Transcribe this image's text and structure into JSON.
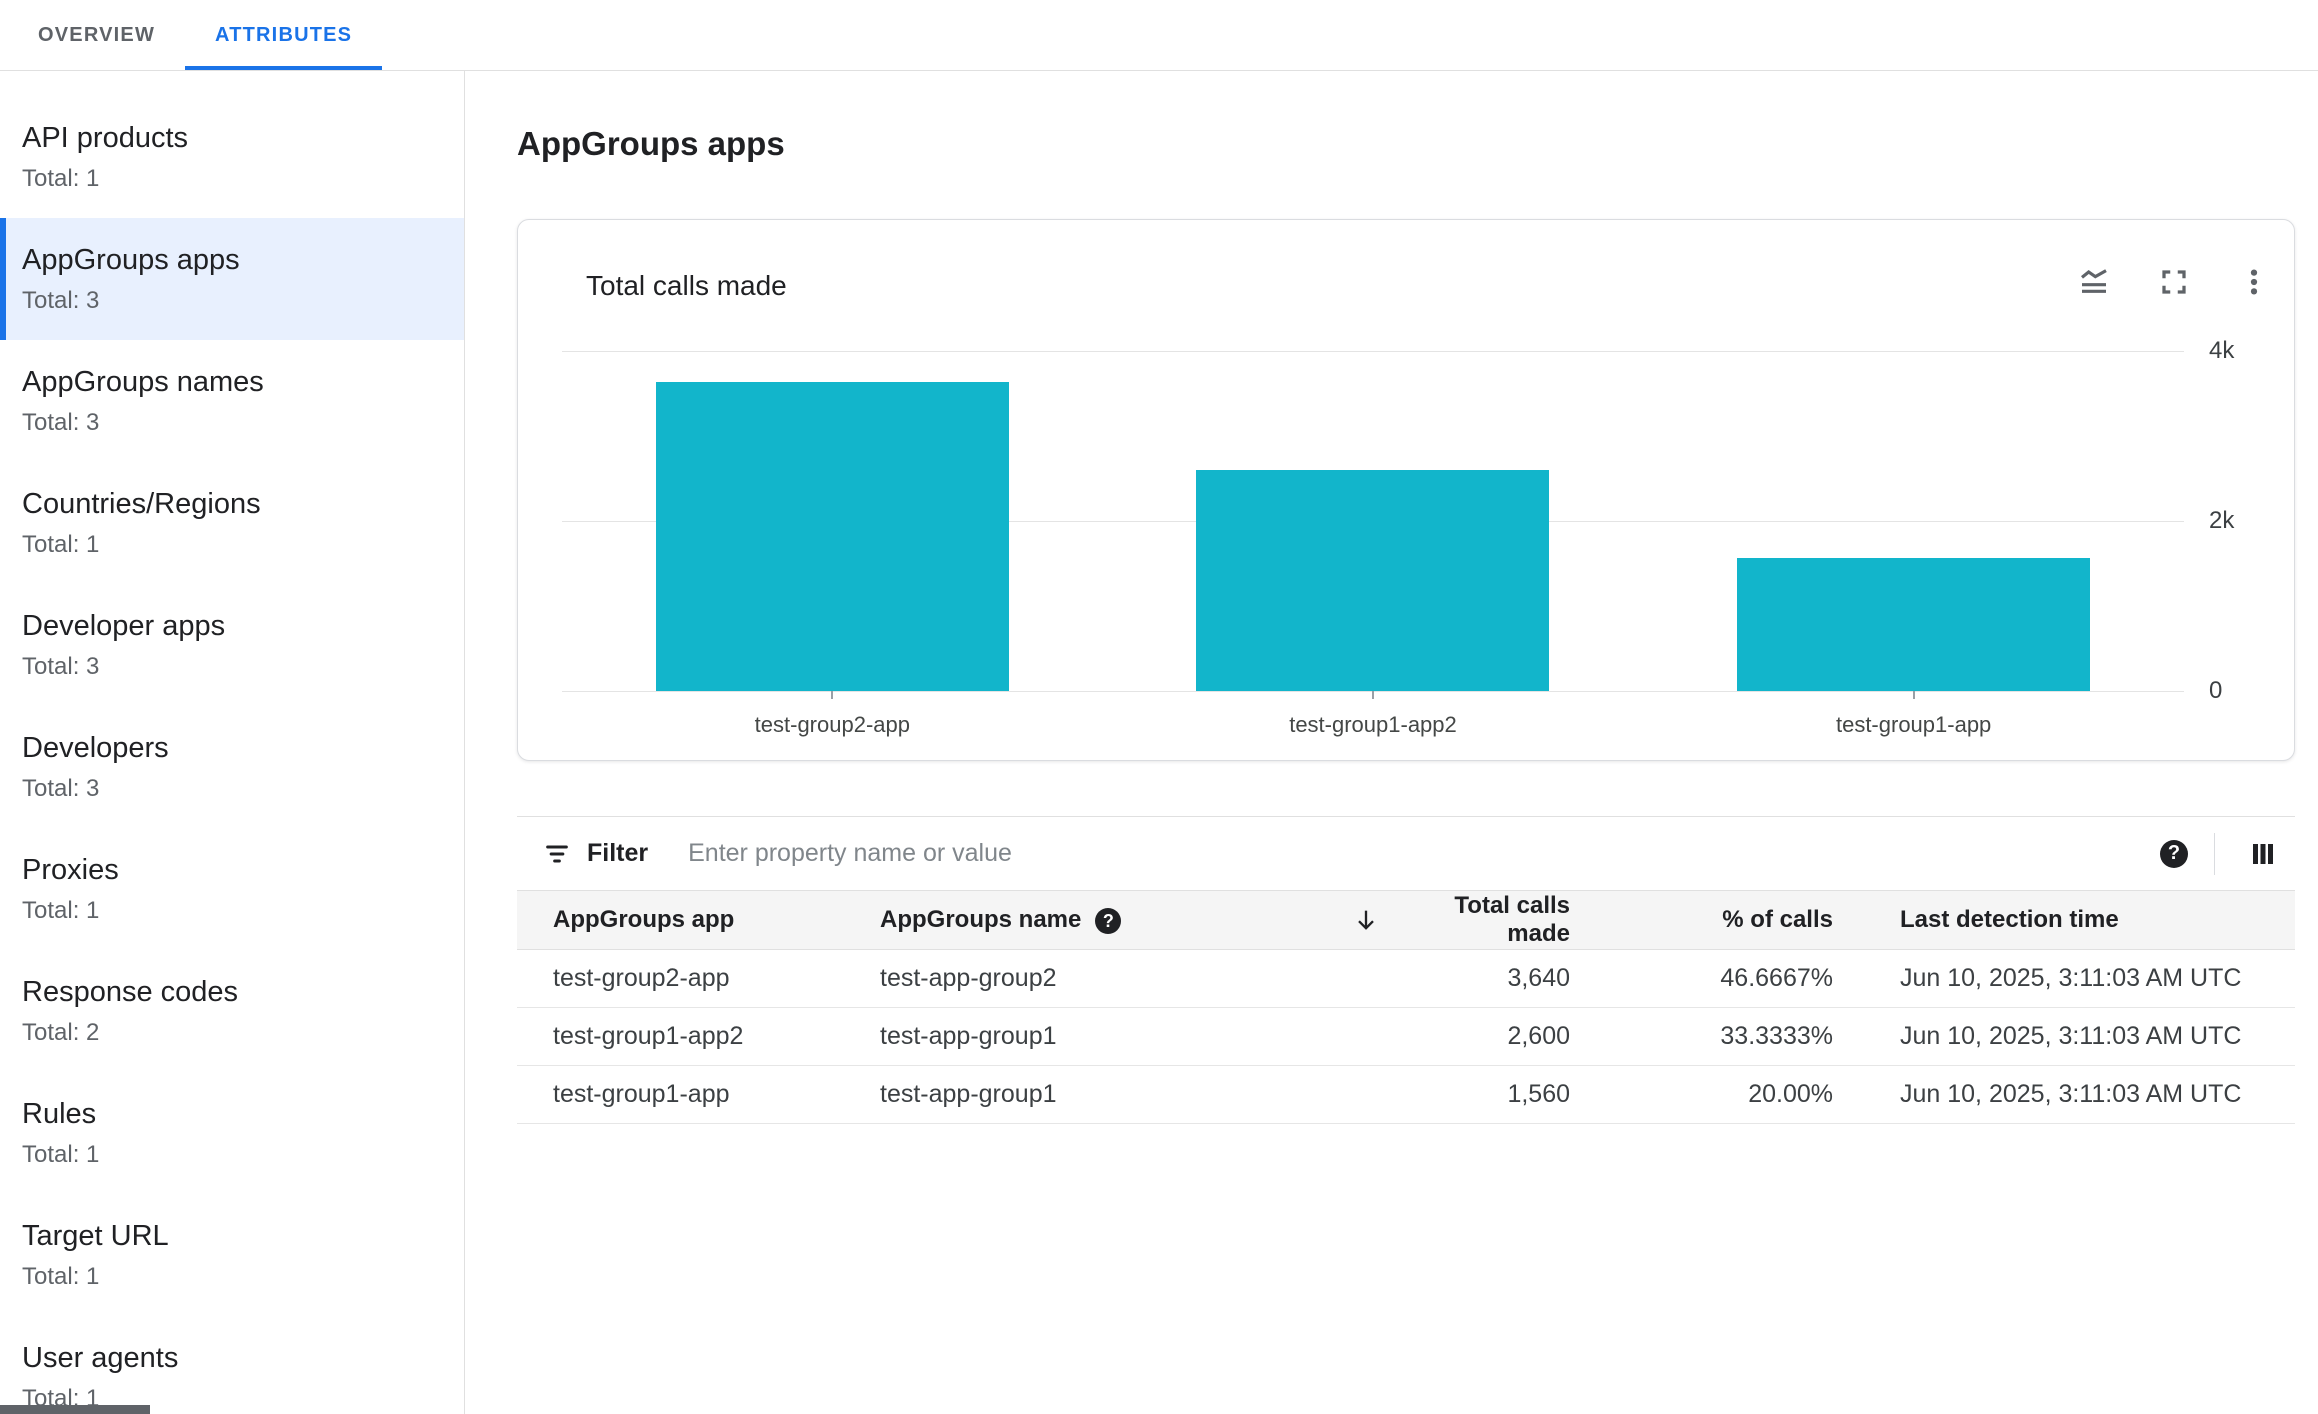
{
  "tabs": [
    {
      "label": "OVERVIEW",
      "active": false
    },
    {
      "label": "ATTRIBUTES",
      "active": true
    }
  ],
  "sidebar": {
    "items": [
      {
        "label": "API products",
        "total": "Total: 1",
        "selected": false
      },
      {
        "label": "AppGroups apps",
        "total": "Total: 3",
        "selected": true
      },
      {
        "label": "AppGroups names",
        "total": "Total: 3",
        "selected": false
      },
      {
        "label": "Countries/Regions",
        "total": "Total: 1",
        "selected": false
      },
      {
        "label": "Developer apps",
        "total": "Total: 3",
        "selected": false
      },
      {
        "label": "Developers",
        "total": "Total: 3",
        "selected": false
      },
      {
        "label": "Proxies",
        "total": "Total: 1",
        "selected": false
      },
      {
        "label": "Response codes",
        "total": "Total: 2",
        "selected": false
      },
      {
        "label": "Rules",
        "total": "Total: 1",
        "selected": false
      },
      {
        "label": "Target URL",
        "total": "Total: 1",
        "selected": false
      },
      {
        "label": "User agents",
        "total": "Total: 1",
        "selected": false
      }
    ]
  },
  "main": {
    "title": "AppGroups apps"
  },
  "chart_card": {
    "title": "Total calls made",
    "icons": [
      "area-chart-icon",
      "fullscreen-icon",
      "more-options-icon"
    ]
  },
  "chart_data": {
    "type": "bar",
    "title": "Total calls made",
    "categories": [
      "test-group2-app",
      "test-group1-app2",
      "test-group1-app"
    ],
    "values": [
      3640,
      2600,
      1560
    ],
    "xlabel": "",
    "ylabel": "",
    "ylim": [
      0,
      4000
    ],
    "yticks": [
      {
        "value": 4000,
        "label": "4k"
      },
      {
        "value": 2000,
        "label": "2k"
      },
      {
        "value": 0,
        "label": "0"
      }
    ],
    "grid": true,
    "legend": false,
    "tick_label_position": "right",
    "bar_color": "#12b5cb"
  },
  "filter": {
    "label": "Filter",
    "placeholder": "Enter property name or value",
    "value": ""
  },
  "icons": {
    "help_glyph": "?"
  },
  "table": {
    "columns": [
      {
        "label": "AppGroups app",
        "align": "left",
        "help": false,
        "sorted": null
      },
      {
        "label": "AppGroups name",
        "align": "left",
        "help": true,
        "sorted": null
      },
      {
        "label": "Total calls made",
        "align": "right",
        "help": false,
        "sorted": "desc"
      },
      {
        "label": "% of calls",
        "align": "right",
        "help": false,
        "sorted": null
      },
      {
        "label": "Last detection time",
        "align": "left",
        "help": false,
        "sorted": null
      }
    ],
    "rows": [
      [
        "test-group2-app",
        "test-app-group2",
        "3,640",
        "46.6667%",
        "Jun 10, 2025, 3:11:03 AM UTC"
      ],
      [
        "test-group1-app2",
        "test-app-group1",
        "2,600",
        "33.3333%",
        "Jun 10, 2025, 3:11:03 AM UTC"
      ],
      [
        "test-group1-app",
        "test-app-group1",
        "1,560",
        "20.00%",
        "Jun 10, 2025, 3:11:03 AM UTC"
      ]
    ]
  },
  "colors": {
    "accent_blue": "#1a73e8",
    "selected_bg": "#e8f0fe",
    "bar_teal": "#12b5cb",
    "border": "#e0e0e0",
    "text_primary": "#202124",
    "text_secondary": "#5f6368"
  }
}
